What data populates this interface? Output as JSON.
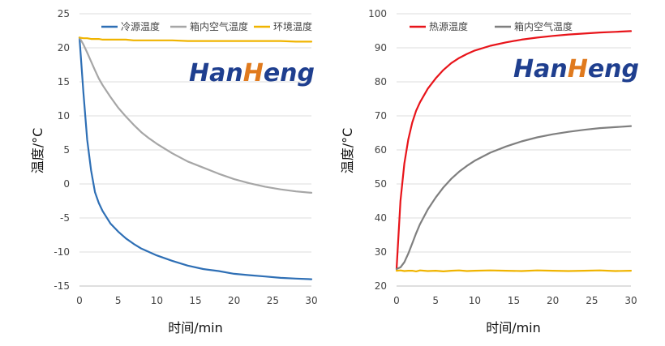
{
  "chart_data": [
    {
      "type": "line",
      "ylabel": "温度/°C",
      "xlabel": "时间/min",
      "xlim": [
        0,
        30
      ],
      "ylim": [
        -15,
        25
      ],
      "xticks": [
        0,
        5,
        10,
        15,
        20,
        25,
        30
      ],
      "yticks": [
        -15,
        -10,
        -5,
        0,
        5,
        10,
        15,
        20,
        25
      ],
      "grid": "horizontal",
      "legend": "top",
      "logo": "HanHeng",
      "x": [
        0,
        0.5,
        1,
        1.5,
        2,
        2.5,
        3,
        4,
        5,
        6,
        7,
        8,
        9,
        10,
        12,
        14,
        16,
        18,
        20,
        22,
        24,
        26,
        28,
        30
      ],
      "series": [
        {
          "name": "冷源温度",
          "color": "#2e6fb5",
          "values": [
            21.5,
            13.5,
            6.5,
            2.0,
            -1.2,
            -2.8,
            -4.0,
            -5.8,
            -7.0,
            -8.0,
            -8.8,
            -9.5,
            -10.0,
            -10.5,
            -11.3,
            -12.0,
            -12.5,
            -12.8,
            -13.2,
            -13.4,
            -13.6,
            -13.8,
            -13.9,
            -14.0
          ]
        },
        {
          "name": "箱内空气温度",
          "color": "#a6a6a6",
          "values": [
            21.5,
            20.5,
            19.3,
            18.0,
            16.7,
            15.5,
            14.5,
            12.8,
            11.2,
            9.9,
            8.7,
            7.6,
            6.7,
            5.9,
            4.5,
            3.3,
            2.4,
            1.5,
            0.7,
            0.1,
            -0.4,
            -0.8,
            -1.1,
            -1.3
          ]
        },
        {
          "name": "环境温度",
          "color": "#f0b400",
          "values": [
            21.5,
            21.4,
            21.4,
            21.3,
            21.3,
            21.3,
            21.2,
            21.2,
            21.2,
            21.2,
            21.1,
            21.1,
            21.1,
            21.1,
            21.1,
            21.0,
            21.0,
            21.0,
            21.0,
            21.0,
            21.0,
            21.0,
            20.9,
            20.9
          ]
        }
      ]
    },
    {
      "type": "line",
      "ylabel": "温度/°C",
      "xlabel": "时间/min",
      "xlim": [
        0,
        30
      ],
      "ylim": [
        20,
        100
      ],
      "xticks": [
        0,
        5,
        10,
        15,
        20,
        25,
        30
      ],
      "yticks": [
        20,
        30,
        40,
        50,
        60,
        70,
        80,
        90,
        100
      ],
      "grid": "horizontal",
      "legend": "top",
      "logo": "HanHeng",
      "x": [
        0,
        0.5,
        1,
        1.5,
        2,
        2.5,
        3,
        4,
        5,
        6,
        7,
        8,
        9,
        10,
        12,
        14,
        16,
        18,
        20,
        22,
        24,
        26,
        28,
        30
      ],
      "series": [
        {
          "name": "热源温度",
          "color": "#e8141a",
          "values": [
            25,
            45,
            56,
            63,
            68,
            71.5,
            74,
            78,
            81,
            83.5,
            85.5,
            87,
            88.2,
            89.2,
            90.6,
            91.6,
            92.4,
            93,
            93.5,
            93.9,
            94.2,
            94.5,
            94.7,
            94.9
          ]
        },
        {
          "name": "箱内空气温度",
          "color": "#7f7f7f",
          "values": [
            25,
            25.5,
            27,
            29.5,
            32.5,
            35.5,
            38.2,
            42.5,
            46,
            49,
            51.5,
            53.6,
            55.3,
            56.8,
            59.2,
            61,
            62.5,
            63.7,
            64.6,
            65.3,
            65.9,
            66.4,
            66.7,
            67
          ]
        },
        {
          "color": "#f0b400",
          "values": [
            24.5,
            24.6,
            24.4,
            24.5,
            24.5,
            24.3,
            24.6,
            24.4,
            24.5,
            24.3,
            24.5,
            24.6,
            24.4,
            24.5,
            24.6,
            24.5,
            24.4,
            24.6,
            24.5,
            24.4,
            24.5,
            24.6,
            24.4,
            24.5
          ]
        }
      ]
    }
  ]
}
